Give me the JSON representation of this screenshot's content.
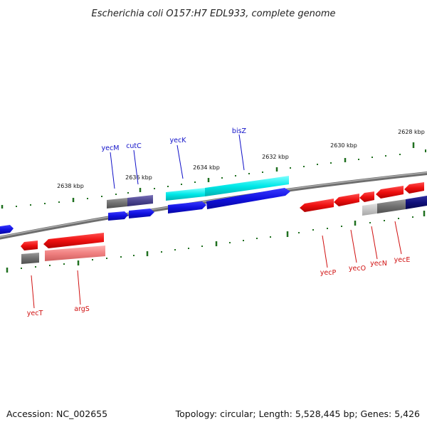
{
  "title": "Escherichia coli O157:H7 EDL933, complete genome",
  "footer": {
    "accession": "Accession: NC_002655",
    "summary": "Topology: circular; Length: 5,528,445 bp; Genes: 5,426"
  },
  "scale_labels": [
    "2638 kbp",
    "2636 kbp",
    "2634 kbp",
    "2632 kbp",
    "2630 kbp",
    "2628 kbp"
  ],
  "genes_forward": [
    "yecM",
    "cutC",
    "yecK",
    "bisZ"
  ],
  "genes_reverse": [
    "yecT",
    "argS",
    "yecP",
    "yecO",
    "yecN",
    "yecE"
  ],
  "colors": {
    "forward_cds": "#1010e0",
    "reverse_cds": "#ee1010",
    "forward_hit": "#00e0e0",
    "reverse_hit": "#f08080",
    "tick": "#207020",
    "backbone": "#808080",
    "forward_label": "#1010c8",
    "reverse_label": "#d01010"
  }
}
